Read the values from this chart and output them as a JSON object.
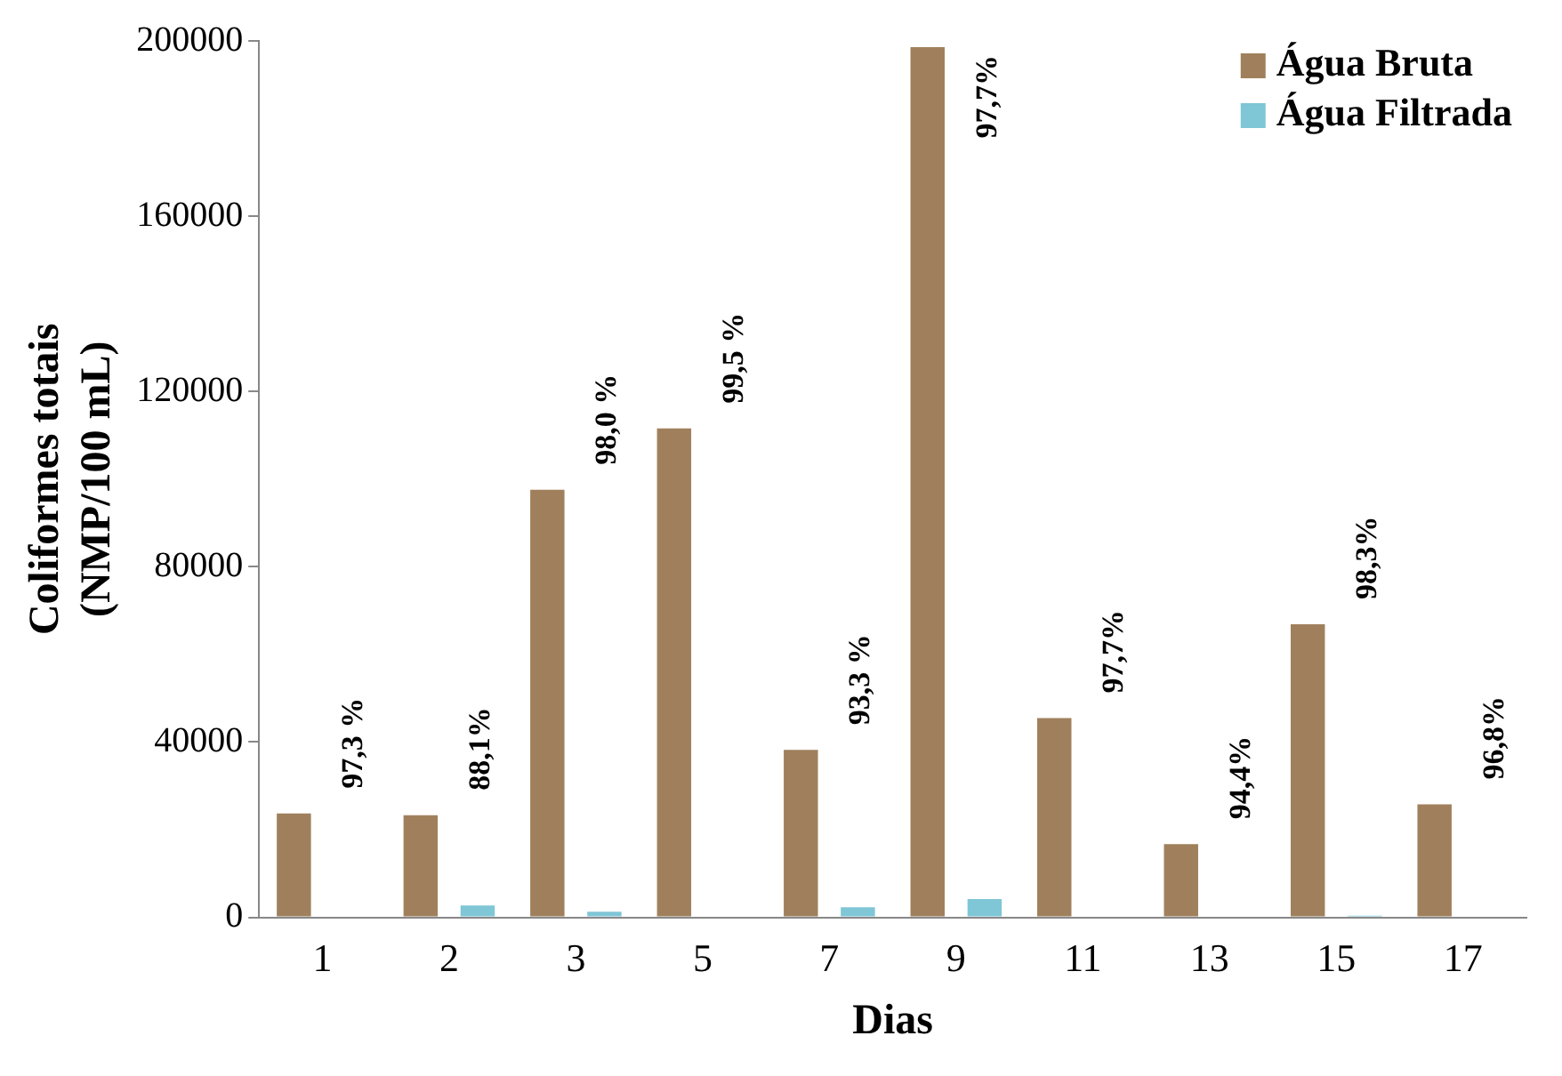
{
  "chart_data": {
    "type": "bar",
    "xlabel": "Dias",
    "ylabel": "Coliformes totais\n(NMP/100 mL)",
    "categories": [
      "1",
      "2",
      "3",
      "5",
      "7",
      "9",
      "11",
      "13",
      "15",
      "17"
    ],
    "series": [
      {
        "name": "Água Bruta",
        "color": "#a0805c",
        "values": [
          23700,
          23300,
          97600,
          111600,
          38200,
          198600,
          45500,
          16700,
          66900,
          25800
        ]
      },
      {
        "name": "Água Filtrada",
        "color": "#7fc6d6",
        "values": [
          null,
          2700,
          1300,
          null,
          2300,
          4200,
          200,
          null,
          400,
          null
        ]
      }
    ],
    "ylim": [
      0,
      200000
    ],
    "yticks": [
      0,
      40000,
      80000,
      120000,
      160000,
      200000
    ],
    "grid": false,
    "legend": "top right",
    "annotations": [
      "97,3 %",
      "88,1%",
      "98,0 %",
      "99,5 %",
      "93,3 %",
      "97,7%",
      "97,7%",
      "94,4%",
      "98,3%",
      "96,8%"
    ]
  }
}
